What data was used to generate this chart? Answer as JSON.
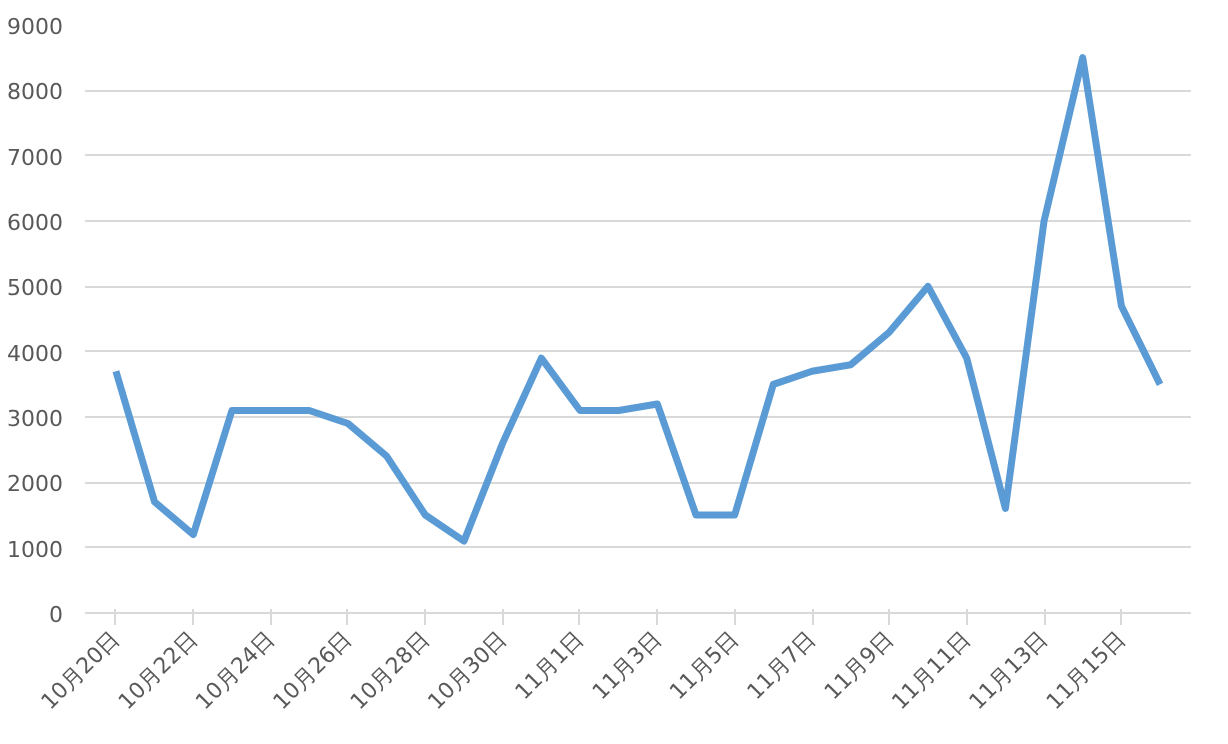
{
  "chart_data": {
    "type": "line",
    "categories": [
      "10月20日",
      null,
      "10月22日",
      null,
      "10月24日",
      null,
      "10月26日",
      null,
      "10月28日",
      null,
      "10月30日",
      null,
      "11月1日",
      null,
      "11月3日",
      null,
      "11月5日",
      null,
      "11月7日",
      null,
      "11月9日",
      null,
      "11月11日",
      null,
      "11月13日",
      null,
      "11月15日",
      null
    ],
    "series": [
      {
        "color": "#5b9bd5",
        "values": [
          3700,
          1700,
          1200,
          3100,
          3100,
          3100,
          2900,
          2400,
          1500,
          1100,
          2600,
          3900,
          3100,
          3100,
          3200,
          1500,
          1500,
          3500,
          3700,
          3800,
          4300,
          5000,
          3900,
          1600,
          6000,
          8500,
          4700,
          3500
        ]
      }
    ],
    "ylim": [
      0,
      9000
    ],
    "yticks": [
      0,
      1000,
      2000,
      3000,
      4000,
      5000,
      6000,
      7000,
      8000,
      9000
    ],
    "grid": "y",
    "marker": "none",
    "line_style": "solid"
  }
}
